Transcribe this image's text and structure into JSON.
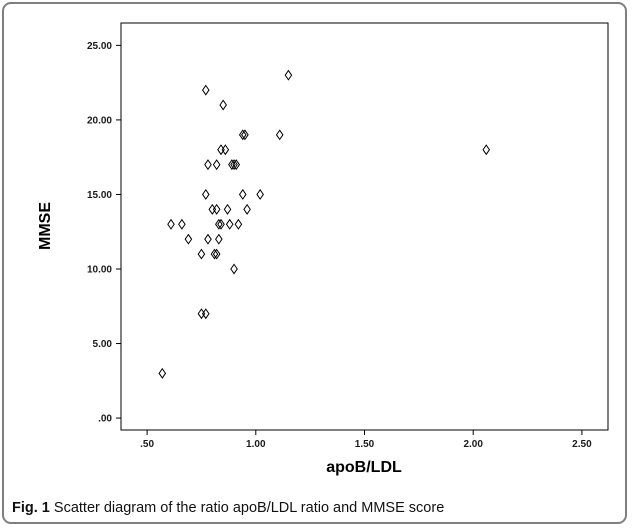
{
  "caption": {
    "label": "Fig. 1",
    "text": "Scatter diagram of the ratio apoB/LDL ratio and MMSE score"
  },
  "chart_data": {
    "type": "scatter",
    "title": "",
    "xlabel": "apoB/LDL",
    "ylabel": "MMSE",
    "xlim": [
      0.38,
      2.62
    ],
    "ylim": [
      -0.8,
      26.5
    ],
    "x_ticks": [
      0.5,
      1.0,
      1.5,
      2.0,
      2.5
    ],
    "x_tick_labels": [
      ".50",
      "1.00",
      "1.50",
      "2.00",
      "2.50"
    ],
    "y_ticks": [
      0,
      5,
      10,
      15,
      20,
      25
    ],
    "y_tick_labels": [
      ".00",
      "5.00",
      "10.00",
      "15.00",
      "20.00",
      "25.00"
    ],
    "marker": "open-diamond",
    "grid": false,
    "points": [
      {
        "x": 0.57,
        "y": 3
      },
      {
        "x": 0.61,
        "y": 13
      },
      {
        "x": 0.66,
        "y": 13
      },
      {
        "x": 0.69,
        "y": 12
      },
      {
        "x": 0.75,
        "y": 7
      },
      {
        "x": 0.77,
        "y": 7
      },
      {
        "x": 0.75,
        "y": 11
      },
      {
        "x": 0.77,
        "y": 15
      },
      {
        "x": 0.77,
        "y": 22
      },
      {
        "x": 0.78,
        "y": 17
      },
      {
        "x": 0.78,
        "y": 12
      },
      {
        "x": 0.8,
        "y": 14
      },
      {
        "x": 0.81,
        "y": 11
      },
      {
        "x": 0.82,
        "y": 11
      },
      {
        "x": 0.82,
        "y": 14
      },
      {
        "x": 0.82,
        "y": 17
      },
      {
        "x": 0.83,
        "y": 13
      },
      {
        "x": 0.83,
        "y": 12
      },
      {
        "x": 0.84,
        "y": 13
      },
      {
        "x": 0.84,
        "y": 18
      },
      {
        "x": 0.85,
        "y": 21
      },
      {
        "x": 0.86,
        "y": 18
      },
      {
        "x": 0.87,
        "y": 14
      },
      {
        "x": 0.88,
        "y": 13
      },
      {
        "x": 0.89,
        "y": 17
      },
      {
        "x": 0.9,
        "y": 17
      },
      {
        "x": 0.9,
        "y": 10
      },
      {
        "x": 0.91,
        "y": 17
      },
      {
        "x": 0.92,
        "y": 13
      },
      {
        "x": 0.94,
        "y": 15
      },
      {
        "x": 0.94,
        "y": 19
      },
      {
        "x": 0.95,
        "y": 19
      },
      {
        "x": 0.96,
        "y": 14
      },
      {
        "x": 1.02,
        "y": 15
      },
      {
        "x": 1.11,
        "y": 19
      },
      {
        "x": 1.15,
        "y": 23
      },
      {
        "x": 2.06,
        "y": 18
      }
    ]
  },
  "colors": {
    "axes": "#000000",
    "frame": "#7f7f7f",
    "marker": "#000000",
    "background": "#ffffff"
  }
}
